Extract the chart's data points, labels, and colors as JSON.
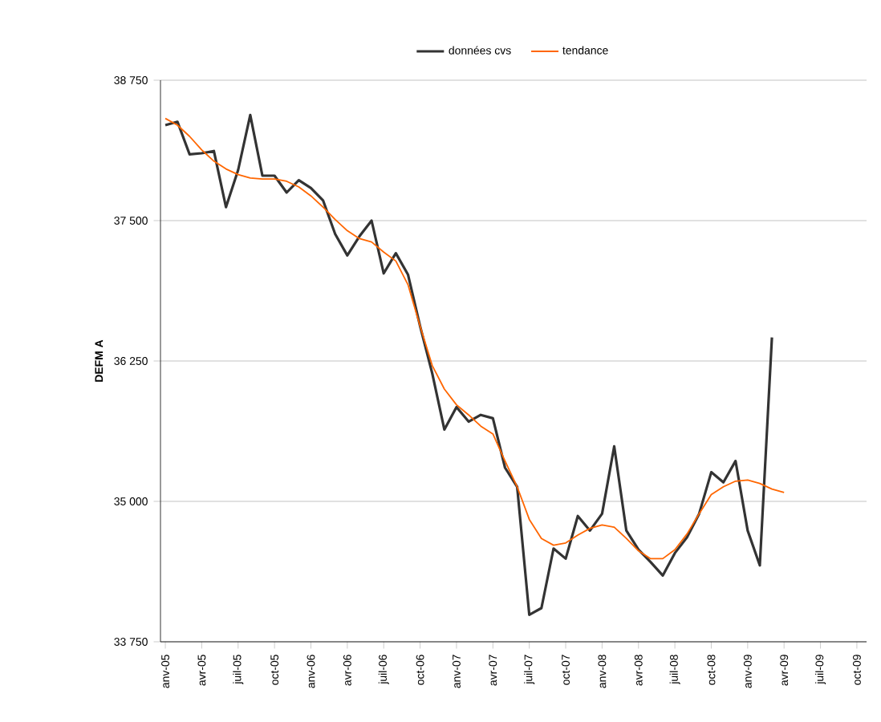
{
  "chart_data": {
    "type": "line",
    "ylabel": "DEFM A",
    "categories": [
      "anv-05",
      null,
      null,
      "avr-05",
      null,
      null,
      "juil-05",
      null,
      null,
      "oct-05",
      null,
      null,
      "anv-06",
      null,
      null,
      "avr-06",
      null,
      null,
      "juil-06",
      null,
      null,
      "oct-06",
      null,
      null,
      "anv-07",
      null,
      null,
      "avr-07",
      null,
      null,
      "juil-07",
      null,
      null,
      "oct-07",
      null,
      null,
      "anv-08",
      null,
      null,
      "avr-08",
      null,
      null,
      "juil-08",
      null,
      null,
      "oct-08",
      null,
      null,
      "anv-09",
      null,
      null,
      "avr-09",
      null,
      null,
      "juil-09",
      null,
      null,
      "oct-09"
    ],
    "series": [
      {
        "name": "données cvs",
        "color": "#333333",
        "values": [
          38350,
          38380,
          38090,
          38100,
          38120,
          37620,
          37950,
          38440,
          37900,
          37900,
          37750,
          37860,
          37790,
          37680,
          37380,
          37190,
          37360,
          37500,
          37030,
          37210,
          37020,
          36560,
          36140,
          35640,
          35840,
          35710,
          35770,
          35740,
          35300,
          35130,
          33990,
          34050,
          34580,
          34490,
          34870,
          34740,
          34890,
          35490,
          34740,
          34570,
          34460,
          34340,
          34540,
          34680,
          34890,
          35260,
          35170,
          35360,
          34740,
          34430,
          36460,
          null,
          null,
          null,
          null,
          null,
          null,
          null
        ]
      },
      {
        "name": "tendance",
        "color": "#ff6600",
        "values": [
          38410,
          38350,
          38250,
          38130,
          38030,
          37960,
          37910,
          37880,
          37870,
          37870,
          37850,
          37800,
          37720,
          37620,
          37510,
          37410,
          37340,
          37310,
          37220,
          37140,
          36930,
          36560,
          36210,
          36000,
          35860,
          35770,
          35670,
          35600,
          35360,
          35130,
          34840,
          34670,
          34610,
          34630,
          34700,
          34760,
          34790,
          34770,
          34670,
          34560,
          34490,
          34490,
          34570,
          34710,
          34890,
          35060,
          35130,
          35180,
          35190,
          35160,
          35110,
          35080,
          null,
          null,
          null,
          null,
          null,
          null
        ]
      }
    ],
    "ylim": [
      33750,
      38750
    ],
    "yticks": [
      {
        "value": 33750,
        "label": "33 750"
      },
      {
        "value": 35000,
        "label": "35 000"
      },
      {
        "value": 36250,
        "label": "36 250"
      },
      {
        "value": 37500,
        "label": "37 500"
      },
      {
        "value": 38750,
        "label": "38 750"
      }
    ],
    "grid": "y",
    "legend": "top",
    "marker": "none",
    "line_style": "solid"
  }
}
